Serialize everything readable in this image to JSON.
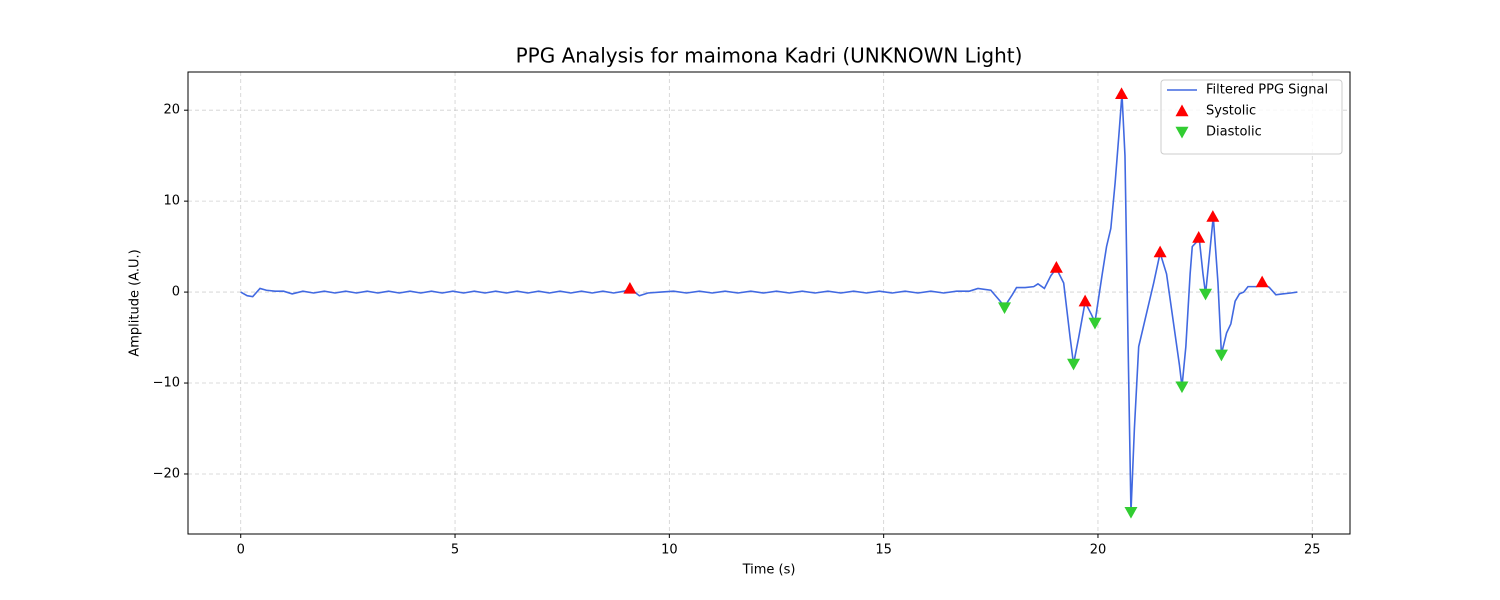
{
  "chart_data": {
    "type": "line",
    "title": "PPG Analysis for maimona Kadri (UNKNOWN Light)",
    "x_label": "Time (s)",
    "y_label": "Amplitude (A.U.)",
    "xlim": [
      -1.23,
      25.88
    ],
    "ylim": [
      -26.6,
      24.2
    ],
    "xticks": [
      0,
      5,
      10,
      15,
      20,
      25
    ],
    "yticks": [
      {
        "value": -20,
        "label": "−20"
      },
      {
        "value": -10,
        "label": "−10"
      },
      0,
      10,
      20
    ],
    "grid": true,
    "legend": "upper right",
    "series": [
      {
        "name": "Filtered PPG Signal",
        "type": "line",
        "color": "#4169e1",
        "x": [
          0,
          0.15,
          0.28,
          0.45,
          0.6,
          0.8,
          1.0,
          1.2,
          1.45,
          1.7,
          1.95,
          2.2,
          2.45,
          2.7,
          2.95,
          3.2,
          3.45,
          3.7,
          3.95,
          4.2,
          4.45,
          4.7,
          4.95,
          5.2,
          5.45,
          5.7,
          5.95,
          6.2,
          6.45,
          6.7,
          6.95,
          7.2,
          7.45,
          7.7,
          7.95,
          8.2,
          8.45,
          8.7,
          8.95,
          9.08,
          9.3,
          9.5,
          9.8,
          10.1,
          10.4,
          10.7,
          11.0,
          11.3,
          11.6,
          11.9,
          12.2,
          12.5,
          12.8,
          13.1,
          13.4,
          13.7,
          14.0,
          14.3,
          14.6,
          14.9,
          15.2,
          15.5,
          15.8,
          16.1,
          16.4,
          16.7,
          17.0,
          17.2,
          17.5,
          17.7,
          17.82,
          18.0,
          18.1,
          18.3,
          18.5,
          18.6,
          18.75,
          18.9,
          19.03,
          19.2,
          19.35,
          19.43,
          19.55,
          19.7,
          19.85,
          19.93,
          20.1,
          20.2,
          20.3,
          20.4,
          20.5,
          20.56,
          20.63,
          20.7,
          20.77,
          20.85,
          20.95,
          21.1,
          21.3,
          21.45,
          21.6,
          21.75,
          21.9,
          21.96,
          22.05,
          22.15,
          22.2,
          22.3,
          22.36,
          22.45,
          22.51,
          22.6,
          22.69,
          22.8,
          22.88,
          23.0,
          23.1,
          23.2,
          23.3,
          23.4,
          23.5,
          23.7,
          23.83,
          24.0,
          24.15,
          24.3,
          24.5,
          24.65
        ],
        "values": [
          0,
          -0.4,
          -0.5,
          0.4,
          0.2,
          0.1,
          0.1,
          -0.2,
          0.1,
          -0.1,
          0.1,
          -0.1,
          0.1,
          -0.1,
          0.1,
          -0.1,
          0.1,
          -0.1,
          0.1,
          -0.1,
          0.1,
          -0.1,
          0.1,
          -0.1,
          0.1,
          -0.1,
          0.1,
          -0.1,
          0.1,
          -0.1,
          0.1,
          -0.1,
          0.1,
          -0.1,
          0.1,
          -0.1,
          0.1,
          -0.1,
          0.1,
          0.4,
          -0.4,
          -0.1,
          0,
          0.1,
          -0.1,
          0.1,
          -0.1,
          0.1,
          -0.1,
          0.1,
          -0.1,
          0.1,
          -0.1,
          0.1,
          -0.1,
          0.1,
          -0.1,
          0.1,
          -0.1,
          0.1,
          -0.1,
          0.1,
          -0.1,
          0.1,
          -0.1,
          0.1,
          0.1,
          0.4,
          0.2,
          -0.9,
          -1.6,
          -0.3,
          0.5,
          0.5,
          0.6,
          0.9,
          0.4,
          1.8,
          2.6,
          1.0,
          -5,
          -7.9,
          -5,
          -1.1,
          -2.5,
          -3.3,
          2,
          5,
          7,
          12,
          18,
          21.8,
          15,
          -5,
          -24.2,
          -15,
          -6,
          -3,
          1,
          4.3,
          2,
          -3,
          -8,
          -10.4,
          -6,
          2,
          5,
          5.5,
          6,
          2,
          -0.2,
          4,
          8.3,
          1,
          -6.8,
          -4.5,
          -3.5,
          -1,
          -0.2,
          0,
          0.6,
          0.6,
          1.0,
          0.5,
          -0.3,
          -0.2,
          -0.1,
          0
        ]
      },
      {
        "name": "Systolic",
        "type": "scatter",
        "marker": "^",
        "color": "#ff0000",
        "x": [
          9.08,
          19.03,
          19.7,
          20.55,
          21.45,
          22.35,
          22.68,
          23.83
        ],
        "values": [
          0.4,
          2.7,
          -1.0,
          21.8,
          4.4,
          6.0,
          8.3,
          1.1
        ]
      },
      {
        "name": "Diastolic",
        "type": "scatter",
        "marker": "v",
        "color": "#32cd32",
        "x": [
          17.82,
          19.43,
          19.93,
          20.77,
          21.96,
          22.51,
          22.88
        ],
        "values": [
          -1.7,
          -7.9,
          -3.4,
          -24.2,
          -10.4,
          -0.2,
          -6.9
        ]
      }
    ]
  }
}
